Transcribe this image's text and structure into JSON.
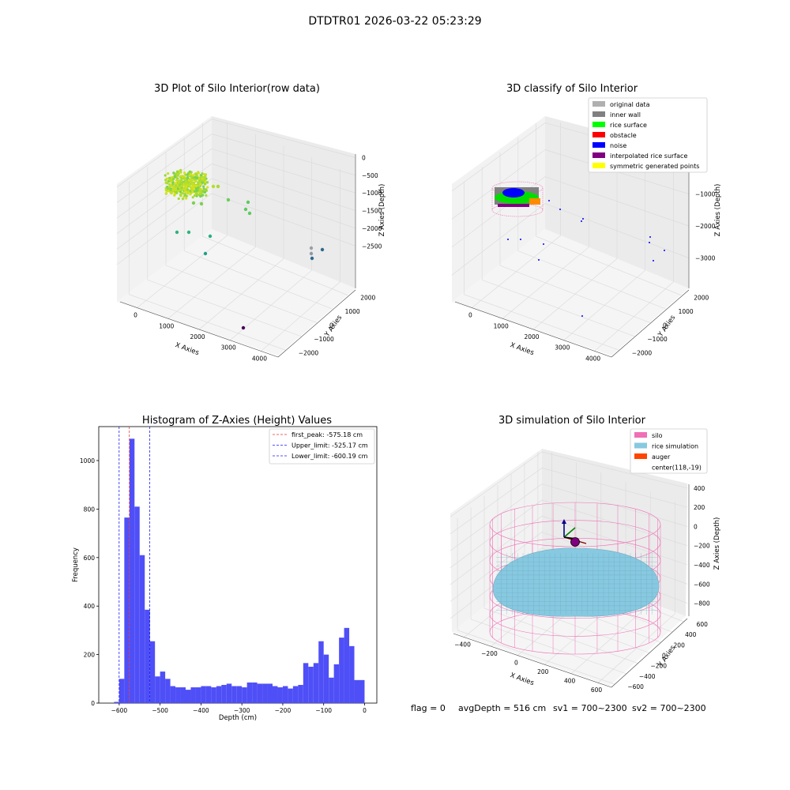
{
  "figure": {
    "suptitle": "DTDTR01 2026-03-22 05:23:29",
    "footer": {
      "flag": "flag = 0",
      "avg_depth": "avgDepth = 516 cm",
      "sv1": "sv1 = 700~2300",
      "sv2": "sv2 = 700~2300"
    }
  },
  "colors": {
    "histogram_bar": "#4f4ff7",
    "first_peak_line": "#e53935",
    "limit_line": "#1a1aff",
    "silo_wire": "#f06fb5",
    "rice_simulation": "#87c9e0",
    "auger": "#ff4500",
    "original_data": "#b0b0b0",
    "inner_wall": "#808080",
    "rice_surface": "#00ff00",
    "obstacle": "#ff0000",
    "noise": "#0000ff",
    "interpolated_rice_surface": "#800080",
    "symmetric_generated_points": "#ffff00"
  },
  "chart_data": [
    {
      "type": "scatter",
      "projection": "3d",
      "title": "3D Plot of Silo Interior(row data)",
      "xlabel": "X Axies",
      "ylabel": "Y Axies",
      "zlabel": "Z Axies (Depth)",
      "xticks": [
        "0",
        "1000",
        "2000",
        "3000",
        "4000"
      ],
      "yticks": [
        "−2000",
        "−1000",
        "0",
        "1000",
        "2000"
      ],
      "zticks": [
        "0",
        "−500",
        "−1000",
        "−1500",
        "−2000",
        "−2500"
      ],
      "colormap": "viridis (colored by depth)",
      "points_summary": "dense cluster near x≈0–600, z≈−500 to −900; scattered points down to z≈−2700; outlier near x≈3000, y≈−1500"
    },
    {
      "type": "scatter",
      "projection": "3d",
      "title": "3D classify of Silo Interior",
      "xlabel": "X Axies",
      "ylabel": "Y Axies",
      "zlabel": "Z Axies (Depth)",
      "xticks": [
        "0",
        "1000",
        "2000",
        "3000",
        "4000"
      ],
      "yticks": [
        "−2000",
        "−1000",
        "0",
        "1000",
        "2000"
      ],
      "zticks": [
        "0",
        "−1000",
        "−2000",
        "−3000"
      ],
      "legend_position": "top-right",
      "legend": [
        {
          "label": "original data",
          "color": "#b0b0b0"
        },
        {
          "label": "inner wall",
          "color": "#808080"
        },
        {
          "label": "rice surface",
          "color": "#00ff00"
        },
        {
          "label": "obstacle",
          "color": "#ff0000"
        },
        {
          "label": "noise",
          "color": "#0000ff"
        },
        {
          "label": "interpolated rice surface",
          "color": "#800080"
        },
        {
          "label": "symmetric generated points",
          "color": "#ffff00"
        }
      ]
    },
    {
      "type": "bar",
      "title": "Histogram of Z-Axies (Height) Values",
      "xlabel": "Depth (cm)",
      "ylabel": "Frequency",
      "xlim": [
        -650,
        30
      ],
      "ylim": [
        0,
        1140
      ],
      "xticks": [
        -600,
        -500,
        -400,
        -300,
        -200,
        -100,
        0
      ],
      "yticks": [
        0,
        200,
        400,
        600,
        800,
        1000
      ],
      "bin_width": 12.5,
      "bin_start": -612.5,
      "bin_edge_labels": "bins from -612.5 to 0, width 12.5 cm",
      "values": [
        5,
        100,
        765,
        1090,
        810,
        610,
        385,
        255,
        110,
        130,
        100,
        70,
        65,
        65,
        55,
        65,
        65,
        70,
        70,
        65,
        70,
        75,
        80,
        70,
        70,
        65,
        85,
        85,
        80,
        80,
        80,
        70,
        65,
        70,
        60,
        70,
        75,
        165,
        150,
        165,
        255,
        200,
        105,
        160,
        270,
        310,
        235,
        95,
        95
      ],
      "vlines": [
        {
          "label": "first_peak: -575.18 cm",
          "x": -575.18,
          "color": "#e53935"
        },
        {
          "label": "Upper_limit: -525.17 cm",
          "x": -525.17,
          "color": "#1a1aff"
        },
        {
          "label": "Lower_limit: -600.19 cm",
          "x": -600.19,
          "color": "#1a1aff"
        }
      ],
      "legend_position": "top-right"
    },
    {
      "type": "surface",
      "projection": "3d",
      "title": "3D simulation of Silo Interior",
      "xlabel": "X Axies",
      "ylabel": "Y Axies",
      "zlabel": "Z Axies (Depth)",
      "xticks": [
        "−400",
        "−200",
        "0",
        "200",
        "400",
        "600"
      ],
      "yticks": [
        "−600",
        "−400",
        "−200",
        "0",
        "200",
        "400",
        "600"
      ],
      "zticks": [
        "400",
        "200",
        "0",
        "−200",
        "−400",
        "−600",
        "−800"
      ],
      "legend_position": "top-right",
      "legend": [
        {
          "label": "silo",
          "color": "#f06fb5"
        },
        {
          "label": "rice simulation",
          "color": "#87c9e0"
        },
        {
          "label": "auger",
          "color": "#ff4500"
        },
        {
          "label": "center(118,-19)",
          "color": ""
        }
      ]
    }
  ]
}
